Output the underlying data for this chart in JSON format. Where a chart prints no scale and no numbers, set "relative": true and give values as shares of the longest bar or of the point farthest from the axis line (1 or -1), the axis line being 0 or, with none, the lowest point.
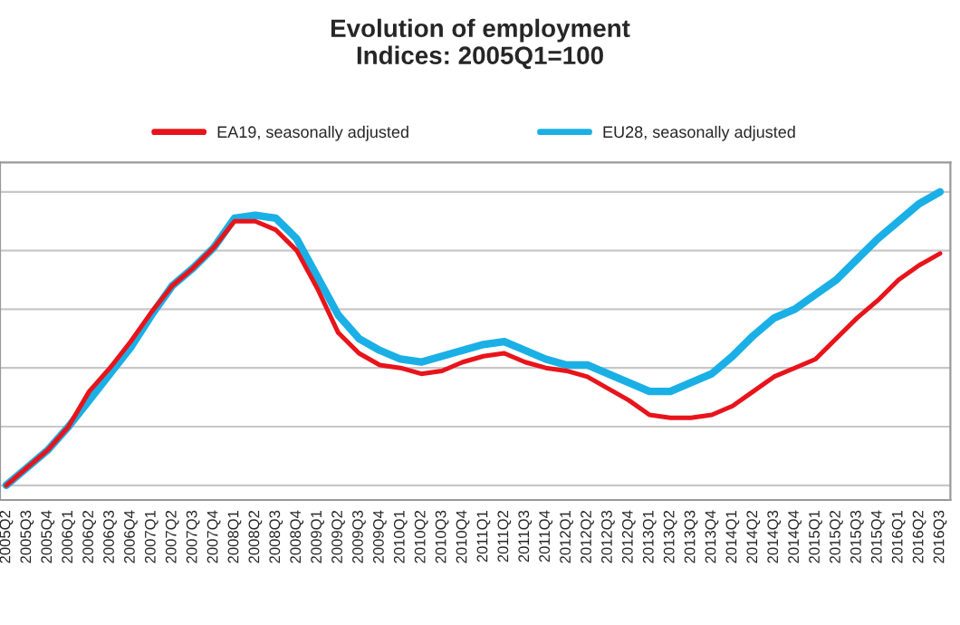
{
  "chart_data": {
    "type": "line",
    "title": "Evolution of employment",
    "subtitle": "Indices: 2005Q1=100",
    "relative": true,
    "grid": "y",
    "legend": "top",
    "marker": "none",
    "line_style": "solid",
    "categories": [
      "2005Q2",
      "2005Q3",
      "2005Q4",
      "2006Q1",
      "2006Q2",
      "2006Q3",
      "2006Q4",
      "2007Q1",
      "2007Q2",
      "2007Q3",
      "2007Q4",
      "2008Q1",
      "2008Q2",
      "2008Q3",
      "2008Q4",
      "2009Q1",
      "2009Q2",
      "2009Q3",
      "2009Q4",
      "2010Q1",
      "2010Q2",
      "2010Q3",
      "2010Q4",
      "2011Q1",
      "2011Q2",
      "2011Q3",
      "2011Q4",
      "2012Q1",
      "2012Q2",
      "2012Q3",
      "2012Q4",
      "2013Q1",
      "2013Q2",
      "2013Q3",
      "2013Q4",
      "2014Q1",
      "2014Q2",
      "2014Q3",
      "2014Q4",
      "2015Q1",
      "2015Q2",
      "2015Q3",
      "2015Q4",
      "2016Q1",
      "2016Q2",
      "2016Q3"
    ],
    "series": [
      {
        "name": "EA19, seasonally adjusted",
        "color": "#e8141b",
        "values": [
          0,
          0.06,
          0.12,
          0.2,
          0.32,
          0.4,
          0.49,
          0.59,
          0.68,
          0.74,
          0.81,
          0.9,
          0.9,
          0.87,
          0.8,
          0.67,
          0.52,
          0.45,
          0.41,
          0.4,
          0.38,
          0.39,
          0.42,
          0.44,
          0.45,
          0.42,
          0.4,
          0.39,
          0.37,
          0.33,
          0.29,
          0.24,
          0.23,
          0.23,
          0.24,
          0.27,
          0.32,
          0.37,
          0.4,
          0.43,
          0.5,
          0.57,
          0.63,
          0.7,
          0.75,
          0.79
        ]
      },
      {
        "name": "EU28, seasonally adjusted",
        "color": "#1ab0e6",
        "values": [
          0,
          0.06,
          0.12,
          0.2,
          0.29,
          0.38,
          0.47,
          0.58,
          0.68,
          0.74,
          0.81,
          0.91,
          0.92,
          0.91,
          0.84,
          0.71,
          0.58,
          0.5,
          0.46,
          0.43,
          0.42,
          0.44,
          0.46,
          0.48,
          0.49,
          0.46,
          0.43,
          0.41,
          0.41,
          0.38,
          0.35,
          0.32,
          0.32,
          0.35,
          0.38,
          0.44,
          0.51,
          0.57,
          0.6,
          0.65,
          0.7,
          0.77,
          0.84,
          0.9,
          0.96,
          1
        ]
      }
    ]
  }
}
